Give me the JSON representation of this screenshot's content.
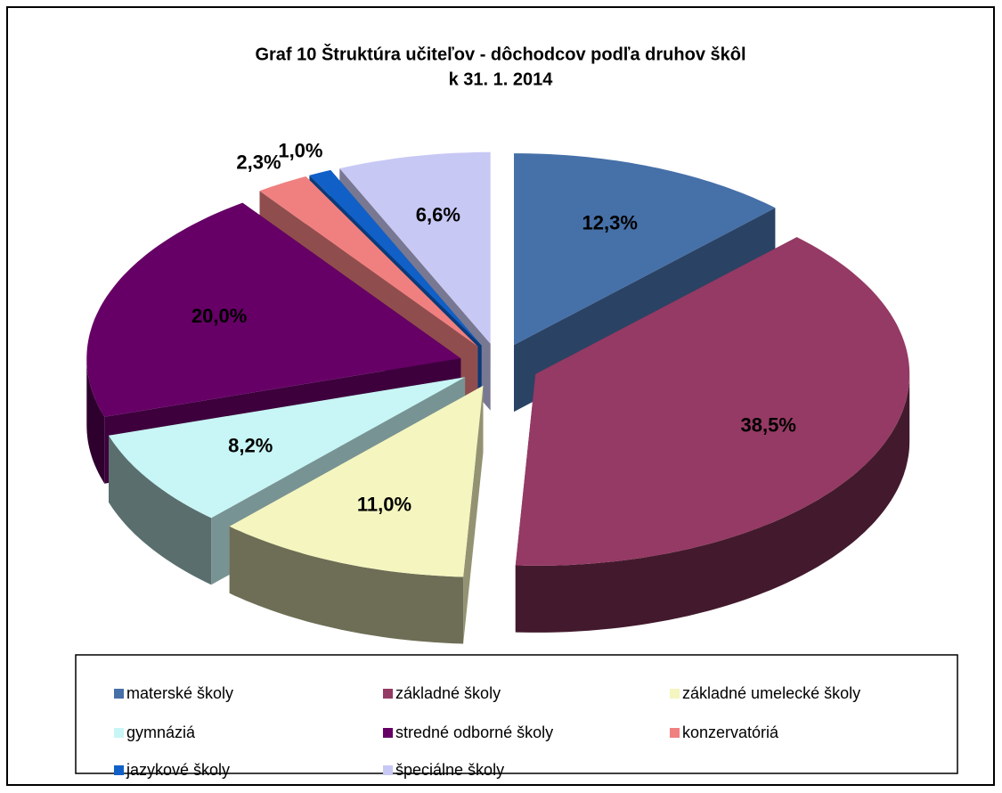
{
  "chart_data": {
    "type": "pie",
    "title_lines": [
      "Graf 10  Štruktúra učiteľov - dôchodcov podľa druhov škôl",
      "k  31. 1. 2014"
    ],
    "categories": [
      "materské školy",
      "základné školy",
      "základné umelecké školy",
      "gymnáziá",
      "stredné odborné školy",
      "konzervatóriá",
      "jazykové školy",
      "špeciálne školy"
    ],
    "values": [
      12.3,
      38.5,
      11.0,
      8.2,
      20.0,
      2.3,
      1.0,
      6.6
    ],
    "value_labels": [
      "12,3%",
      "38,5%",
      "11,0%",
      "8,2%",
      "20,0%",
      "2,3%",
      "1,0%",
      "6,6%"
    ],
    "colors": [
      "#4670a8",
      "#953a64",
      "#f5f5c0",
      "#c8f5f5",
      "#660066",
      "#f08080",
      "#1060c8",
      "#c8c8f5"
    ],
    "legend": "bottom"
  }
}
